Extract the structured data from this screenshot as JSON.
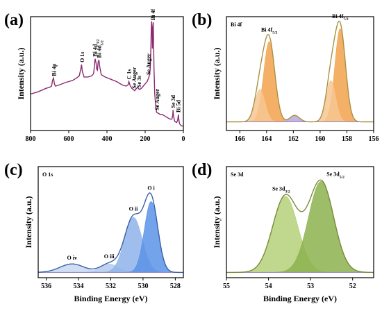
{
  "chart_data": [
    {
      "id": "a",
      "panel_label": "(a)",
      "type": "line",
      "xlabel": "",
      "ylabel": "Intensity (a.u.)",
      "xlim": [
        800,
        0
      ],
      "xticks": [
        800,
        600,
        400,
        200,
        0
      ],
      "ylim": [
        0,
        1
      ],
      "color": "#8a2a6e",
      "x": [
        800,
        760,
        720,
        700,
        690,
        685,
        680,
        675,
        670,
        650,
        620,
        600,
        580,
        560,
        545,
        537,
        533,
        529,
        520,
        500,
        480,
        470,
        466,
        462,
        458,
        454,
        450,
        446,
        442,
        438,
        430,
        410,
        380,
        350,
        320,
        300,
        290,
        285,
        280,
        270,
        255,
        240,
        230,
        220,
        210,
        200,
        190,
        180,
        175,
        172,
        170,
        168,
        166,
        164,
        162,
        160,
        158,
        156,
        154,
        150,
        145,
        140,
        130,
        120,
        110,
        100,
        90,
        80,
        70,
        60,
        56,
        54,
        52,
        45,
        35,
        30,
        26,
        24,
        20,
        10,
        0
      ],
      "y": [
        0.32,
        0.34,
        0.37,
        0.38,
        0.39,
        0.44,
        0.46,
        0.41,
        0.39,
        0.4,
        0.42,
        0.43,
        0.44,
        0.46,
        0.48,
        0.54,
        0.58,
        0.52,
        0.47,
        0.47,
        0.48,
        0.5,
        0.56,
        0.63,
        0.6,
        0.54,
        0.53,
        0.6,
        0.62,
        0.56,
        0.49,
        0.47,
        0.45,
        0.43,
        0.4,
        0.39,
        0.4,
        0.43,
        0.4,
        0.37,
        0.35,
        0.38,
        0.36,
        0.37,
        0.39,
        0.41,
        0.43,
        0.47,
        0.52,
        0.6,
        0.74,
        0.9,
        0.96,
        0.88,
        0.72,
        0.9,
        0.95,
        0.8,
        0.55,
        0.32,
        0.22,
        0.16,
        0.15,
        0.14,
        0.14,
        0.13,
        0.12,
        0.11,
        0.1,
        0.1,
        0.13,
        0.18,
        0.13,
        0.08,
        0.07,
        0.09,
        0.14,
        0.1,
        0.06,
        0.04,
        0.04
      ],
      "annotations": [
        {
          "text": "Bi 4p",
          "x": 679
        },
        {
          "text": "O 1s",
          "x": 531
        },
        {
          "text": "Bi 4d3/2",
          "x": 464
        },
        {
          "text": "Bi 4d5/2",
          "x": 442
        },
        {
          "text": "C 1s",
          "x": 285
        },
        {
          "text": "Se Auger",
          "x": 258
        },
        {
          "text": "Se 3s",
          "x": 232
        },
        {
          "text": "Se Auger",
          "x": 183
        },
        {
          "text": "Bi 4f",
          "x": 160
        },
        {
          "text": "Se Auger",
          "x": 139
        },
        {
          "text": "Se 3d",
          "x": 55
        },
        {
          "text": "Bi 5d",
          "x": 27
        }
      ]
    },
    {
      "id": "b",
      "panel_label": "(b)",
      "panel_title": "Bi 4f",
      "type": "area",
      "xlabel": "",
      "ylabel": "Intensity (a.u.)",
      "xlim": [
        167,
        156
      ],
      "xticks": [
        166,
        164,
        162,
        160,
        158,
        156
      ],
      "ylim": [
        0,
        1.05
      ],
      "baseline": 0.08,
      "envelope_color": "#a89140",
      "peaks": [
        {
          "center": 163.8,
          "height": 0.74,
          "sigma": 0.42,
          "fill": "#f3a24e"
        },
        {
          "center": 164.5,
          "height": 0.3,
          "sigma": 0.38,
          "fill": "#f6c792"
        },
        {
          "center": 161.9,
          "height": 0.06,
          "sigma": 0.35,
          "fill": "#b9a9d8"
        },
        {
          "center": 158.5,
          "height": 0.86,
          "sigma": 0.4,
          "fill": "#f3a24e"
        },
        {
          "center": 159.2,
          "height": 0.38,
          "sigma": 0.36,
          "fill": "#f6c792"
        }
      ],
      "annotations": [
        {
          "text": "Bi 4f5/2",
          "x": 163.8
        },
        {
          "text": "Bi 4f7/2",
          "x": 158.5
        }
      ]
    },
    {
      "id": "c",
      "panel_label": "(c)",
      "panel_title": "O 1s",
      "type": "area",
      "xlabel": "Binding Energy (eV)",
      "ylabel": "Intensity (a.u.)",
      "xlim": [
        536.5,
        527.5
      ],
      "xticks": [
        536,
        534,
        532,
        530,
        528
      ],
      "ylim": [
        0,
        1.05
      ],
      "baseline": 0.05,
      "envelope_color": "#3a5fa8",
      "peaks": [
        {
          "center": 534.4,
          "height": 0.08,
          "sigma": 0.75,
          "fill": "#c8d8f2"
        },
        {
          "center": 532.1,
          "height": 0.08,
          "sigma": 0.55,
          "fill": "#b4cbee"
        },
        {
          "center": 530.6,
          "height": 0.52,
          "sigma": 0.55,
          "fill": "#8fb3ea"
        },
        {
          "center": 529.5,
          "height": 0.67,
          "sigma": 0.42,
          "fill": "#5a93e6"
        }
      ],
      "annotations": [
        {
          "text": "O iv",
          "x": 534.4
        },
        {
          "text": "O iii",
          "x": 532.1
        },
        {
          "text": "O ii",
          "x": 530.6
        },
        {
          "text": "O i",
          "x": 529.5
        }
      ]
    },
    {
      "id": "d",
      "panel_label": "(d)",
      "panel_title": "Se 3d",
      "type": "area",
      "xlabel": "Binding Energy (eV)",
      "ylabel": "Intensity (a.u.)",
      "xlim": [
        55,
        51.5
      ],
      "xticks": [
        55,
        54,
        53,
        52
      ],
      "ylim": [
        0,
        1.05
      ],
      "baseline": 0.05,
      "envelope_color": "#7a8a3a",
      "peaks": [
        {
          "center": 53.6,
          "height": 0.72,
          "sigma": 0.3,
          "fill": "#b5d07a"
        },
        {
          "center": 52.75,
          "height": 0.86,
          "sigma": 0.3,
          "fill": "#8cb24e"
        }
      ],
      "annotations": [
        {
          "text": "Se 3d3/2",
          "x": 53.6
        },
        {
          "text": "Se 3d5/2",
          "x": 52.75
        }
      ]
    }
  ]
}
